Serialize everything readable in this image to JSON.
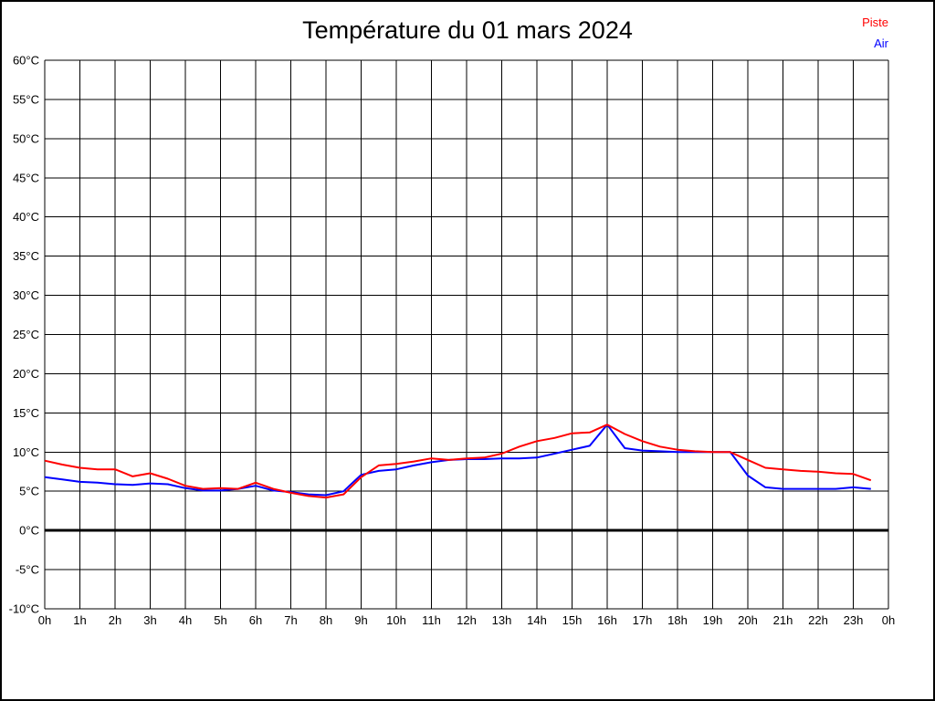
{
  "window": {
    "background_color": "#ffffff",
    "border_color": "#000000"
  },
  "header": {
    "title": "Température du 01 mars 2024"
  },
  "legend": {
    "position": "top-right",
    "items": [
      {
        "label": "Piste",
        "color": "#ff0000"
      },
      {
        "label": "Air",
        "color": "#0000ff"
      }
    ]
  },
  "chart_data": {
    "type": "line",
    "title": "Température du 01 mars 2024",
    "xlabel": "",
    "ylabel": "",
    "ylim": [
      -10,
      60
    ],
    "y_tick_step": 5,
    "y_tick_labels": [
      "60°C",
      "55°C",
      "50°C",
      "45°C",
      "40°C",
      "35°C",
      "30°C",
      "25°C",
      "20°C",
      "15°C",
      "10°C",
      "5°C",
      "0°C",
      "-5°C",
      "-10°C"
    ],
    "x_tick_labels": [
      "0h",
      "1h",
      "2h",
      "3h",
      "4h",
      "5h",
      "6h",
      "7h",
      "8h",
      "9h",
      "10h",
      "11h",
      "12h",
      "13h",
      "14h",
      "15h",
      "16h",
      "17h",
      "18h",
      "19h",
      "20h",
      "21h",
      "22h",
      "23h",
      "0h"
    ],
    "xlim_hours": [
      0,
      24
    ],
    "grid": "on",
    "grid_color": "#000000",
    "zero_line": {
      "value": 0,
      "color": "#000000",
      "thick": true
    },
    "legend_position": "top-right",
    "x": [
      0,
      0.5,
      1,
      1.5,
      2,
      2.5,
      3,
      3.5,
      4,
      4.5,
      5,
      5.5,
      6,
      6.5,
      7,
      7.5,
      8,
      8.5,
      9,
      9.5,
      10,
      10.5,
      11,
      11.5,
      12,
      12.5,
      13,
      13.5,
      14,
      14.5,
      15,
      15.5,
      16,
      16.5,
      17,
      17.5,
      18,
      18.5,
      19,
      19.5,
      20,
      20.5,
      21,
      21.5,
      22,
      22.5,
      23,
      23.5
    ],
    "series": [
      {
        "name": "Piste",
        "color": "#ff0000",
        "values": [
          8.9,
          8.4,
          8.0,
          7.8,
          7.8,
          6.9,
          7.3,
          6.6,
          5.7,
          5.3,
          5.4,
          5.3,
          6.1,
          5.3,
          4.8,
          4.4,
          4.2,
          4.6,
          6.8,
          8.3,
          8.5,
          8.8,
          9.2,
          9.0,
          9.2,
          9.3,
          9.8,
          10.7,
          11.4,
          11.8,
          12.4,
          12.5,
          13.5,
          12.3,
          11.4,
          10.7,
          10.3,
          10.1,
          10.0,
          10.0,
          9.0,
          8.0,
          7.8,
          7.6,
          7.5,
          7.3,
          7.2,
          6.4
        ]
      },
      {
        "name": "Air",
        "color": "#0000ff",
        "values": [
          6.8,
          6.5,
          6.2,
          6.1,
          5.9,
          5.8,
          6.0,
          5.9,
          5.4,
          5.1,
          5.1,
          5.3,
          5.7,
          5.1,
          4.9,
          4.6,
          4.5,
          5.0,
          7.1,
          7.6,
          7.8,
          8.3,
          8.7,
          9.0,
          9.1,
          9.1,
          9.2,
          9.2,
          9.3,
          9.8,
          10.3,
          10.8,
          13.5,
          10.5,
          10.2,
          10.1,
          10.0,
          10.0,
          10.0,
          10.0,
          7.0,
          5.5,
          5.3,
          5.3,
          5.3,
          5.3,
          5.5,
          5.3
        ]
      }
    ]
  }
}
